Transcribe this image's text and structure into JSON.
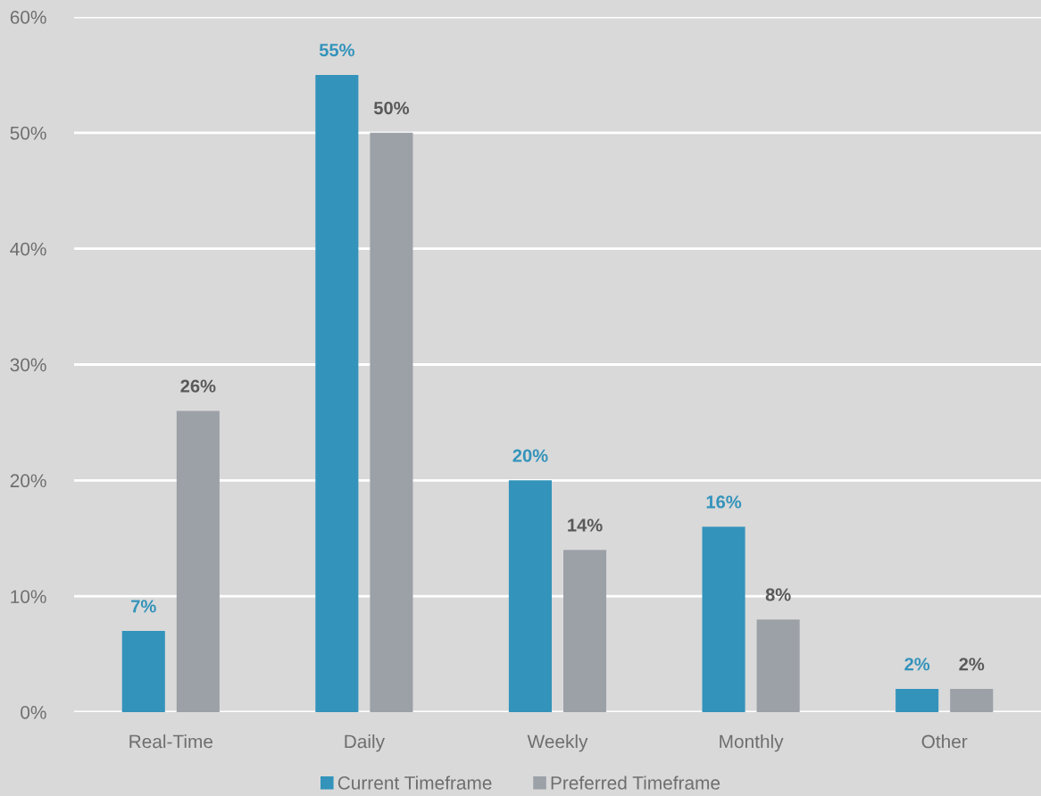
{
  "chart_data": {
    "type": "bar",
    "categories": [
      "Real-Time",
      "Daily",
      "Weekly",
      "Monthly",
      "Other"
    ],
    "series": [
      {
        "name": "Current Timeframe",
        "color": "#3393bb",
        "values": [
          7,
          55,
          20,
          16,
          2
        ],
        "value_labels": [
          "7%",
          "55%",
          "20%",
          "16%",
          "2%"
        ]
      },
      {
        "name": "Preferred Timeframe",
        "color": "#9ca0a7",
        "values": [
          26,
          50,
          14,
          8,
          2
        ],
        "value_labels": [
          "26%",
          "50%",
          "14%",
          "8%",
          "2%"
        ]
      }
    ],
    "ylim": [
      0,
      60
    ],
    "yticks": [
      {
        "value": 0,
        "label": "0%"
      },
      {
        "value": 10,
        "label": "10%"
      },
      {
        "value": 20,
        "label": "20%"
      },
      {
        "value": 30,
        "label": "30%"
      },
      {
        "value": 40,
        "label": "40%"
      },
      {
        "value": 50,
        "label": "50%"
      },
      {
        "value": 60,
        "label": "60%"
      }
    ],
    "grid": "y",
    "legend": "bottom"
  }
}
